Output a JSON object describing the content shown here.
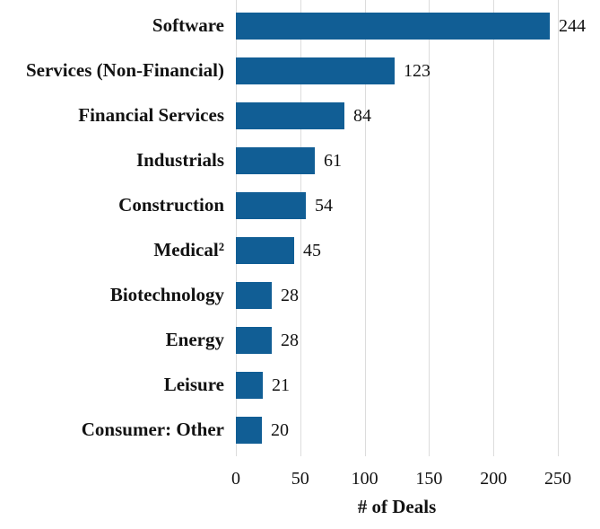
{
  "chart_data": {
    "type": "bar",
    "orientation": "horizontal",
    "categories": [
      "Software",
      "Services (Non-Financial)",
      "Financial Services",
      "Industrials",
      "Construction",
      "Medical²",
      "Biotechnology",
      "Energy",
      "Leisure",
      "Consumer: Other"
    ],
    "values": [
      244,
      123,
      84,
      61,
      54,
      45,
      28,
      28,
      21,
      20
    ],
    "title": "",
    "xlabel": "# of Deals",
    "ylabel": "",
    "xlim": [
      0,
      250
    ],
    "xticks": [
      0,
      50,
      100,
      150,
      200,
      250
    ],
    "grid": "vertical-gridlines",
    "legend": "none",
    "bar_color": "#115E95",
    "gridline_color": "#DCDCDC",
    "text_color": "#121212",
    "background_color": "#FFFFFF"
  }
}
